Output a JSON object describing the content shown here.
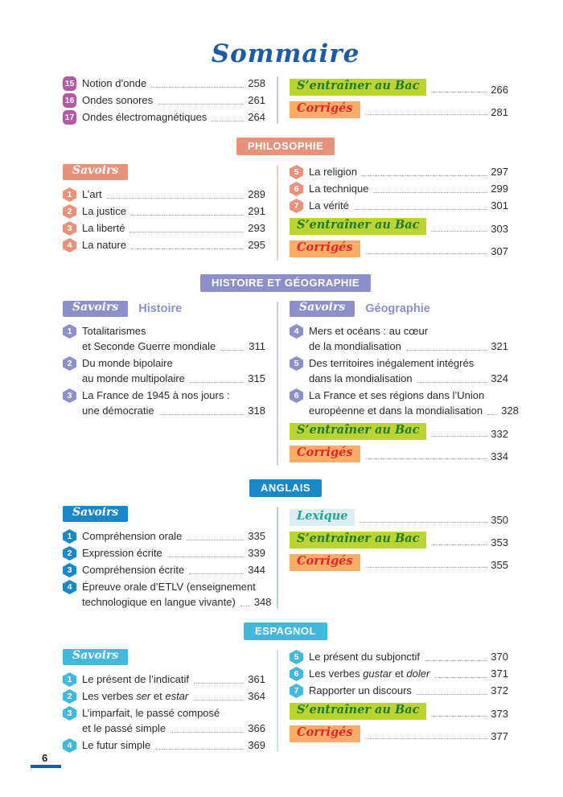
{
  "title": {
    "text": "Sommaire"
  },
  "palette": {
    "title_color": "#1d5ba6",
    "text_color": "#2a2a28",
    "leader_color": "#9b9b9b",
    "footer_bar_color": "#1a5aa8",
    "bac_bg": "#bcd431",
    "bac_fg": "#1e7b33",
    "corriges_bg": "#f9ad69",
    "corriges_fg": "#e02627",
    "lexique_bg": "#dcedf1",
    "lexique_fg": "#27a393"
  },
  "labels": {
    "savoirs": "Savoirs",
    "bac": "S’entraîner au Bac",
    "corriges": "Corrigés",
    "lexique": "Lexique"
  },
  "sections": [
    {
      "name": "ondes",
      "header": null,
      "color": "#b45aa4",
      "divider_color": "#cbc5cd",
      "badge_shape": "sq",
      "left": [
        {
          "type": "item",
          "num": "15",
          "lines": [
            [
              {
                "t": "Notion d’onde"
              }
            ]
          ],
          "page": "258"
        },
        {
          "type": "item",
          "num": "16",
          "lines": [
            [
              {
                "t": "Ondes sonores"
              }
            ]
          ],
          "page": "261"
        },
        {
          "type": "item",
          "num": "17",
          "lines": [
            [
              {
                "t": "Ondes électromagnétiques"
              }
            ]
          ],
          "page": "264"
        }
      ],
      "right": [
        {
          "type": "highlight",
          "style": "bac",
          "page": "266"
        },
        {
          "type": "highlight",
          "style": "corriges",
          "page": "281"
        }
      ]
    },
    {
      "name": "philosophie",
      "header": "PHILOSOPHIE",
      "color": "#e9927b",
      "divider_color": "#f3c9ba",
      "badge_shape": "hex",
      "left": [
        {
          "type": "savoirs"
        },
        {
          "type": "item",
          "num": "1",
          "lines": [
            [
              {
                "t": "L’art"
              }
            ]
          ],
          "page": "289"
        },
        {
          "type": "item",
          "num": "2",
          "lines": [
            [
              {
                "t": "La justice"
              }
            ]
          ],
          "page": "291"
        },
        {
          "type": "item",
          "num": "3",
          "lines": [
            [
              {
                "t": "La liberté"
              }
            ]
          ],
          "page": "293"
        },
        {
          "type": "item",
          "num": "4",
          "lines": [
            [
              {
                "t": "La nature"
              }
            ]
          ],
          "page": "295"
        }
      ],
      "right": [
        {
          "type": "item",
          "num": "5",
          "lines": [
            [
              {
                "t": "La religion"
              }
            ]
          ],
          "page": "297"
        },
        {
          "type": "item",
          "num": "6",
          "lines": [
            [
              {
                "t": "La technique"
              }
            ]
          ],
          "page": "299"
        },
        {
          "type": "item",
          "num": "7",
          "lines": [
            [
              {
                "t": "La vérité"
              }
            ]
          ],
          "page": "301"
        },
        {
          "type": "highlight",
          "style": "bac",
          "page": "303"
        },
        {
          "type": "highlight",
          "style": "corriges",
          "page": "307"
        }
      ]
    },
    {
      "name": "histoire-geographie",
      "header": "HISTOIRE ET GÉOGRAPHIE",
      "color": "#8d8fcb",
      "divider_color": "#cdcde8",
      "badge_shape": "hex",
      "left": [
        {
          "type": "savoirs",
          "subject": "Histoire"
        },
        {
          "type": "item",
          "num": "1",
          "lines": [
            [
              {
                "t": "Totalitarismes"
              }
            ],
            [
              {
                "t": "et Seconde Guerre mondiale"
              }
            ]
          ],
          "page": "311"
        },
        {
          "type": "item",
          "num": "2",
          "lines": [
            [
              {
                "t": "Du monde bipolaire"
              }
            ],
            [
              {
                "t": "au monde multipolaire"
              }
            ]
          ],
          "page": "315"
        },
        {
          "type": "item",
          "num": "3",
          "lines": [
            [
              {
                "t": "La France de 1945 à nos jours :"
              }
            ],
            [
              {
                "t": "une démocratie"
              }
            ]
          ],
          "page": "318"
        }
      ],
      "right": [
        {
          "type": "savoirs",
          "subject": "Géographie"
        },
        {
          "type": "item",
          "num": "4",
          "lines": [
            [
              {
                "t": "Mers et océans : au cœur"
              }
            ],
            [
              {
                "t": "de la mondialisation"
              }
            ]
          ],
          "page": "321"
        },
        {
          "type": "item",
          "num": "5",
          "lines": [
            [
              {
                "t": "Des territoires inégalement intégrés"
              }
            ],
            [
              {
                "t": "dans la mondialisation"
              }
            ]
          ],
          "page": "324"
        },
        {
          "type": "item",
          "num": "6",
          "lines": [
            [
              {
                "t": "La France et ses régions dans l’Union"
              }
            ],
            [
              {
                "t": "européenne et dans la mondialisation"
              }
            ]
          ],
          "page": "328"
        },
        {
          "type": "highlight",
          "style": "bac",
          "page": "332"
        },
        {
          "type": "highlight",
          "style": "corriges",
          "page": "334"
        }
      ]
    },
    {
      "name": "anglais",
      "header": "ANGLAIS",
      "color": "#1a87c9",
      "divider_color": "#a9d2e9",
      "badge_shape": "hex",
      "left": [
        {
          "type": "savoirs"
        },
        {
          "type": "item",
          "num": "1",
          "lines": [
            [
              {
                "t": "Compréhension orale"
              }
            ]
          ],
          "page": "335"
        },
        {
          "type": "item",
          "num": "2",
          "lines": [
            [
              {
                "t": "Expression écrite"
              }
            ]
          ],
          "page": "339"
        },
        {
          "type": "item",
          "num": "3",
          "lines": [
            [
              {
                "t": "Compréhension écrite"
              }
            ]
          ],
          "page": "344"
        },
        {
          "type": "item",
          "num": "4",
          "lines": [
            [
              {
                "t": "Épreuve orale d’ETLV (enseignement"
              }
            ],
            [
              {
                "t": "technologique en langue vivante)"
              }
            ]
          ],
          "page": "348"
        }
      ],
      "right": [
        {
          "type": "highlight",
          "style": "lexique",
          "page": "350"
        },
        {
          "type": "highlight",
          "style": "bac",
          "page": "353"
        },
        {
          "type": "highlight",
          "style": "corriges",
          "page": "355"
        }
      ]
    },
    {
      "name": "espagnol",
      "header": "ESPAGNOL",
      "color": "#42b8dc",
      "divider_color": "#c2e5f2",
      "badge_shape": "hex",
      "left": [
        {
          "type": "savoirs"
        },
        {
          "type": "item",
          "num": "1",
          "lines": [
            [
              {
                "t": "Le présent de l’indicatif"
              }
            ]
          ],
          "page": "361"
        },
        {
          "type": "item",
          "num": "2",
          "lines": [
            [
              {
                "t": "Les verbes "
              },
              {
                "t": "ser",
                "i": true
              },
              {
                "t": " et "
              },
              {
                "t": "estar",
                "i": true
              }
            ]
          ],
          "page": "364"
        },
        {
          "type": "item",
          "num": "3",
          "lines": [
            [
              {
                "t": "L’imparfait, le passé composé"
              }
            ],
            [
              {
                "t": "et le passé simple"
              }
            ]
          ],
          "page": "366"
        },
        {
          "type": "item",
          "num": "4",
          "lines": [
            [
              {
                "t": "Le futur simple"
              }
            ]
          ],
          "page": "369"
        }
      ],
      "right": [
        {
          "type": "item",
          "num": "5",
          "lines": [
            [
              {
                "t": "Le présent du subjonctif"
              }
            ]
          ],
          "page": "370"
        },
        {
          "type": "item",
          "num": "6",
          "lines": [
            [
              {
                "t": "Les verbes "
              },
              {
                "t": "gustar",
                "i": true
              },
              {
                "t": " et "
              },
              {
                "t": "doler",
                "i": true
              }
            ]
          ],
          "page": "371"
        },
        {
          "type": "item",
          "num": "7",
          "lines": [
            [
              {
                "t": "Rapporter un discours"
              }
            ]
          ],
          "page": "372"
        },
        {
          "type": "highlight",
          "style": "bac",
          "page": "373"
        },
        {
          "type": "highlight",
          "style": "corriges",
          "page": "377"
        }
      ]
    }
  ],
  "footer": {
    "page_number": "6"
  }
}
